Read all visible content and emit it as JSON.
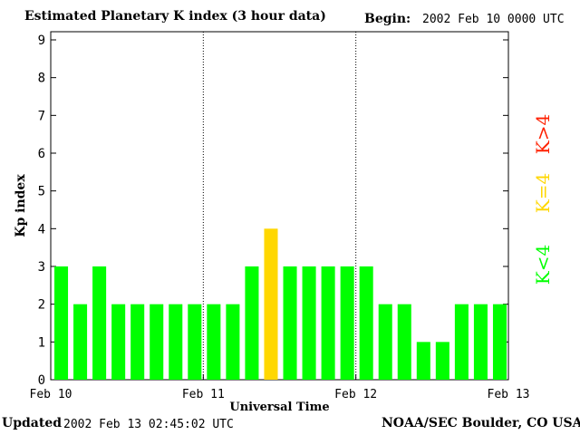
{
  "header": {
    "title": "Estimated Planetary K index (3 hour data)",
    "begin_label": "Begin:",
    "begin_value": "2002 Feb 10 0000 UTC"
  },
  "footer": {
    "updated_label": "Updated",
    "updated_value": "2002 Feb 13 02:45:02 UTC",
    "credit": "NOAA/SEC Boulder, CO USA"
  },
  "colors": {
    "below_4": "#00ff00",
    "equal_4": "#ffd700",
    "above_4": "#ff2000",
    "grid_divider": "#000000"
  },
  "chart_data": {
    "type": "bar",
    "title": "Estimated Planetary K index (3 hour data)",
    "xlabel": "Universal Time",
    "ylabel": "Kp index",
    "ylim": [
      0,
      9
    ],
    "yticks": [
      "0",
      "1",
      "2",
      "3",
      "4",
      "5",
      "6",
      "7",
      "8",
      "9"
    ],
    "x_tick_labels": [
      "Feb 10",
      "Feb 11",
      "Feb 12",
      "Feb 13"
    ],
    "interval_hours": 3,
    "values": [
      3,
      2,
      3,
      2,
      2,
      2,
      2,
      2,
      2,
      2,
      3,
      4,
      3,
      3,
      3,
      3,
      3,
      2,
      2,
      1,
      1,
      2,
      2,
      2
    ],
    "legend": [
      {
        "label": "K<4",
        "color_key": "below_4"
      },
      {
        "label": "K=4",
        "color_key": "equal_4"
      },
      {
        "label": "K>4",
        "color_key": "above_4"
      }
    ],
    "legend_placement": "right, rotated vertically",
    "day_dividers": "dotted"
  }
}
